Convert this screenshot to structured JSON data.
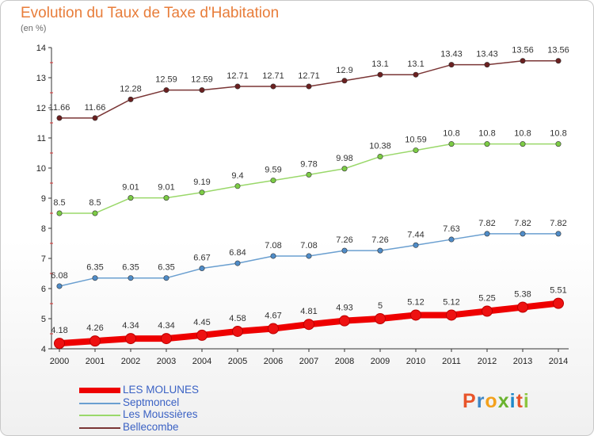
{
  "header": {
    "title": "Evolution du Taux de Taxe d'Habitation",
    "subtitle": "(en %)"
  },
  "logo": {
    "text": "Proxiti",
    "colors": [
      "#e8542a",
      "#3d86c6",
      "#f3a11c",
      "#6ab32e",
      "#1e88c9",
      "#e8542a",
      "#8cc63f"
    ]
  },
  "chart_data": {
    "type": "line",
    "title": "Evolution du Taux de Taxe d'Habitation",
    "ylabel": "(en %)",
    "xlabel": "",
    "ylim": [
      4,
      14
    ],
    "yticks": [
      4,
      5,
      6,
      7,
      8,
      9,
      10,
      11,
      12,
      13,
      14
    ],
    "grid": false,
    "legend_position": "bottom-left",
    "x": [
      "2000",
      "2001",
      "2002",
      "2003",
      "2004",
      "2005",
      "2006",
      "2007",
      "2008",
      "2009",
      "2010",
      "2011",
      "2012",
      "2013",
      "2014"
    ],
    "series": [
      {
        "name": "LES MOLUNES",
        "color": "#ee0000",
        "marker": "#ee1111",
        "emphasis": true,
        "values": [
          4.18,
          4.26,
          4.34,
          4.34,
          4.45,
          4.58,
          4.67,
          4.81,
          4.93,
          5,
          5.12,
          5.12,
          5.25,
          5.38,
          5.51
        ],
        "labels": [
          "4.18",
          "4.26",
          "4.34",
          "4.34",
          "4.45",
          "4.58",
          "4.67",
          "4.81",
          "4.93",
          "5",
          "5.12",
          "5.12",
          "5.25",
          "5.38",
          "5.51"
        ]
      },
      {
        "name": "Septmoncel",
        "color": "#6a9fd0",
        "marker": "#4f8cc8",
        "emphasis": false,
        "values": [
          6.08,
          6.35,
          6.35,
          6.35,
          6.67,
          6.84,
          7.08,
          7.08,
          7.26,
          7.26,
          7.44,
          7.63,
          7.82,
          7.82,
          7.82
        ],
        "labels": [
          "6.08",
          "6.35",
          "6.35",
          "6.35",
          "6.67",
          "6.84",
          "7.08",
          "7.08",
          "7.26",
          "7.26",
          "7.44",
          "7.63",
          "7.82",
          "7.82",
          "7.82"
        ]
      },
      {
        "name": "Les Moussières",
        "color": "#9ad86a",
        "marker": "#7ccc45",
        "emphasis": false,
        "values": [
          8.5,
          8.5,
          9.01,
          9.01,
          9.19,
          9.4,
          9.59,
          9.78,
          9.98,
          10.38,
          10.59,
          10.8,
          10.8,
          10.8,
          10.8
        ],
        "labels": [
          "8.5",
          "8.5",
          "9.01",
          "9.01",
          "9.19",
          "9.4",
          "9.59",
          "9.78",
          "9.98",
          "10.38",
          "10.59",
          "10.8",
          "10.8",
          "10.8",
          "10.8"
        ]
      },
      {
        "name": "Bellecombe",
        "color": "#7a3535",
        "marker": "#6b2020",
        "emphasis": false,
        "values": [
          11.66,
          11.66,
          12.28,
          12.59,
          12.59,
          12.71,
          12.71,
          12.71,
          12.9,
          13.1,
          13.1,
          13.43,
          13.43,
          13.56,
          13.56
        ],
        "labels": [
          "11.66",
          "11.66",
          "12.28",
          "12.59",
          "12.59",
          "12.71",
          "12.71",
          "12.71",
          "12.9",
          "13.1",
          "13.1",
          "13.43",
          "13.43",
          "13.56",
          "13.56"
        ]
      }
    ]
  }
}
